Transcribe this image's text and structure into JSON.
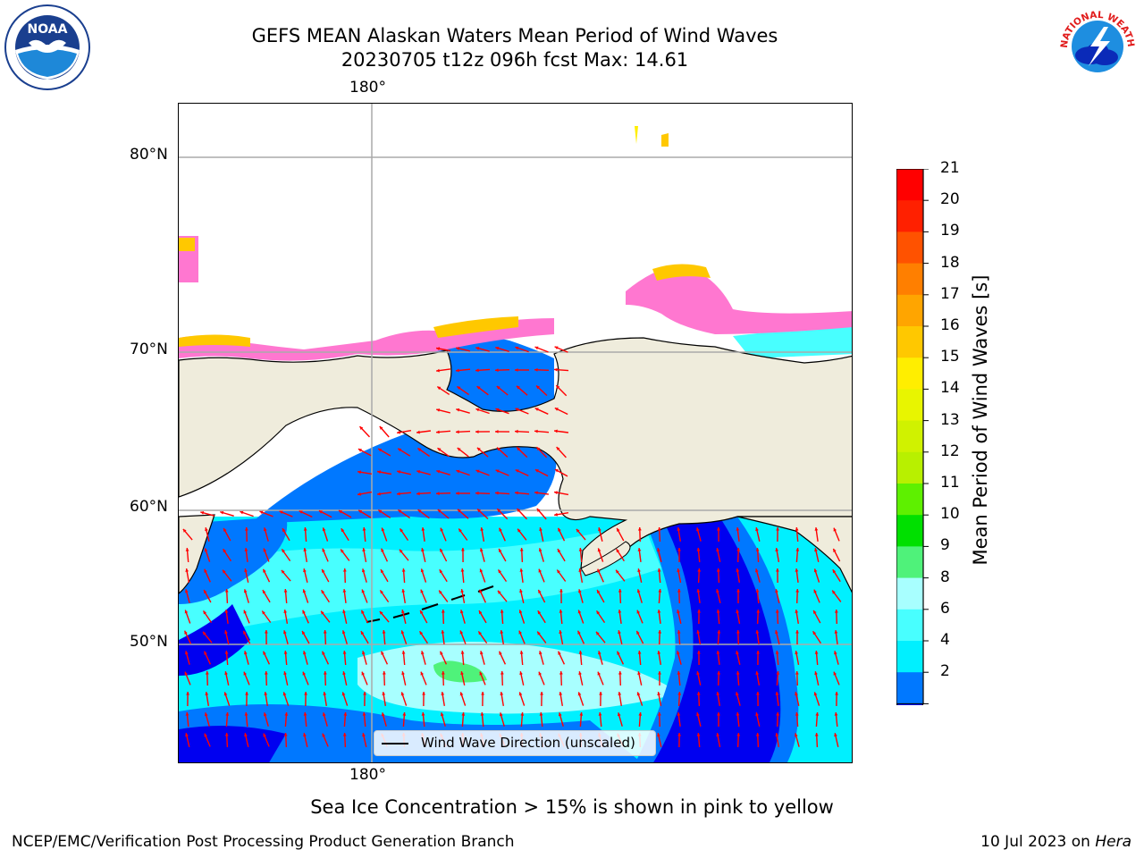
{
  "title": {
    "line1": "GEFS MEAN Alaskan Waters Mean Period of Wind Waves",
    "line2": "20230705 t12z 096h fcst   Max: 14.61"
  },
  "map": {
    "lon_label_top": "180°",
    "lon_label_bottom": "180°",
    "lat_labels": [
      "80°N",
      "70°N",
      "60°N",
      "50°N"
    ],
    "land_color": "#efecdc",
    "arrow_color": "#ff0000"
  },
  "legend": {
    "label": "Wind Wave Direction (unscaled)"
  },
  "colorbar": {
    "title": "Mean Period of Wind Waves [s]",
    "ticks": [
      "21",
      "20",
      "19",
      "18",
      "17",
      "16",
      "15",
      "14",
      "13",
      "12",
      "11",
      "10",
      "9",
      "8",
      "6",
      "4",
      "2"
    ],
    "colors": [
      "#ff0000",
      "#ff2000",
      "#ff5200",
      "#ff7f00",
      "#ffa500",
      "#ffc800",
      "#ffee00",
      "#e8f500",
      "#d0f200",
      "#b8f000",
      "#5ef000",
      "#00e000",
      "#4ff27a",
      "#a8ffff",
      "#48ffff",
      "#00f0ff",
      "#0078ff"
    ],
    "extend_color": "#0000f0"
  },
  "footnote": "Sea Ice Concentration > 15% is shown in pink to yellow",
  "footer": {
    "left": "NCEP/EMC/Verification Post Processing Product Generation Branch",
    "right_prefix": "10 Jul 2023 on ",
    "right_host": "Hera"
  },
  "logos": {
    "noaa_text": "NOAA",
    "nws_text": "NATIONAL WEATHER SERVICE"
  }
}
